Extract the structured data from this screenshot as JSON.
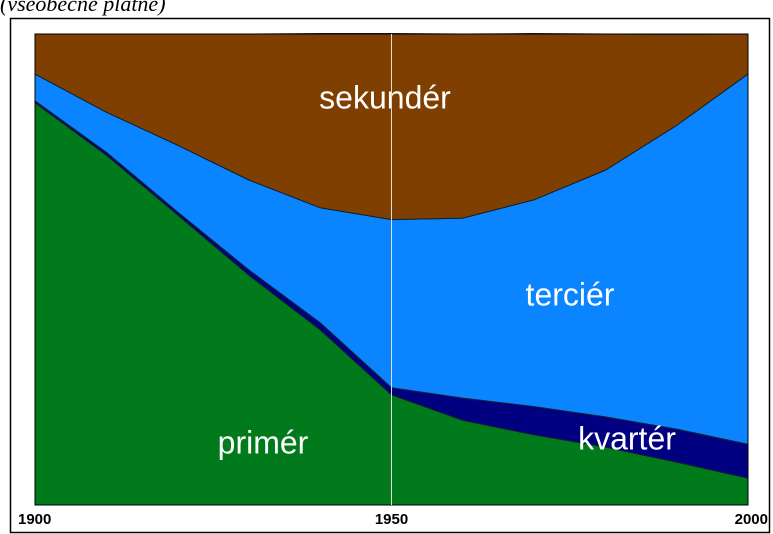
{
  "chart_data": {
    "type": "stacked_area",
    "subtitle": "(všeobecně platné)",
    "x": [
      1900,
      1910,
      1920,
      1930,
      1940,
      1950,
      1960,
      1970,
      1980,
      1990,
      2000
    ],
    "xlim": [
      1900,
      2000
    ],
    "xticks": [
      1900,
      1950,
      2000
    ],
    "ylim": [
      0,
      100
    ],
    "grid": true,
    "series": [
      {
        "name": "primér",
        "color": "#007a1a",
        "values": [
          85.4,
          74.3,
          61.6,
          48.8,
          37.2,
          23.4,
          18.0,
          14.9,
          12.3,
          9.1,
          5.7
        ]
      },
      {
        "name": "kvartér",
        "color": "#000080",
        "values": [
          0.4,
          0.6,
          0.6,
          1.1,
          1.5,
          1.5,
          4.7,
          6.0,
          6.4,
          7.0,
          7.2
        ]
      },
      {
        "name": "terciér",
        "color": "#0a84ff",
        "values": [
          5.7,
          8.5,
          14.2,
          19.1,
          24.4,
          35.7,
          38.2,
          43.9,
          52.4,
          64.5,
          78.6
        ]
      },
      {
        "name": "sekundér",
        "color": "#7f3f00",
        "values": [
          8.5,
          16.6,
          23.6,
          31.0,
          37.0,
          39.5,
          39.1,
          35.3,
          28.9,
          19.3,
          8.5
        ]
      }
    ]
  }
}
